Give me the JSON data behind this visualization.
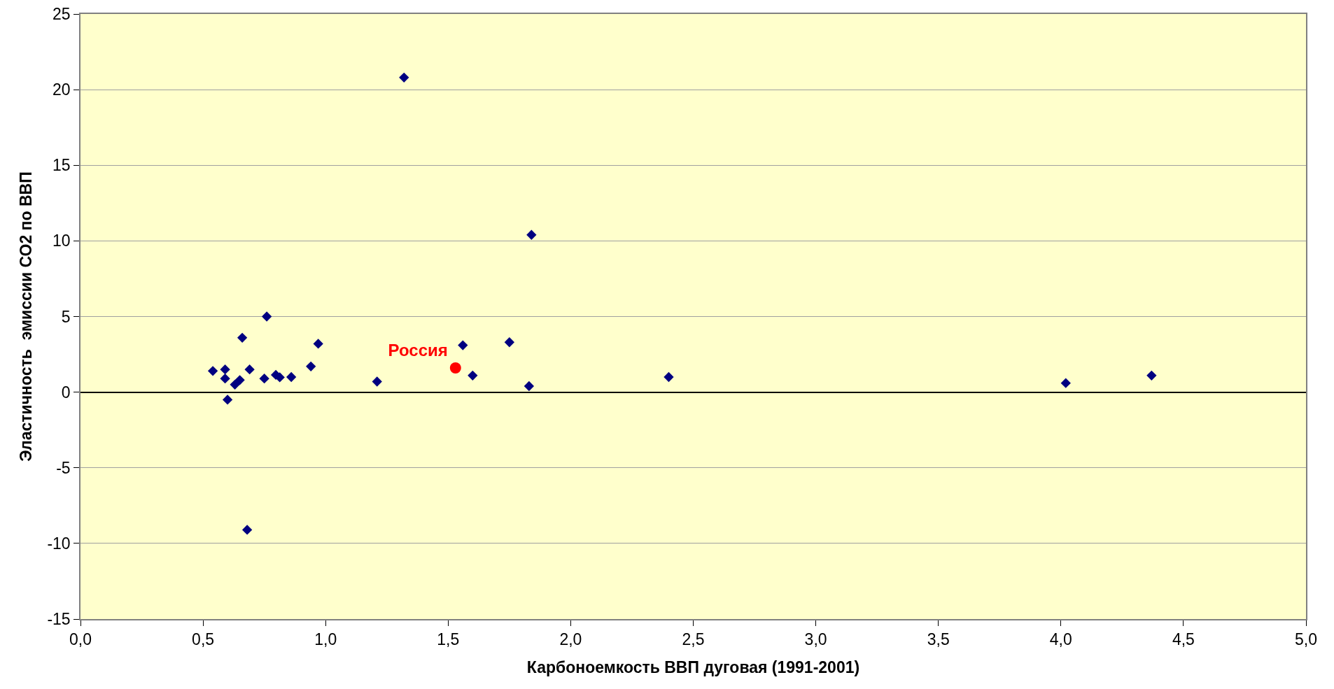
{
  "chart_data": {
    "type": "scatter",
    "xlabel": "Карбоноемкость ВВП дуговая (1991-2001)",
    "ylabel": "Эластичность  эмиссии СО2 по ВВП",
    "xlim": [
      0,
      5
    ],
    "xticks": [
      {
        "value": 0,
        "label": "0,0"
      },
      {
        "value": 0.5,
        "label": "0,5"
      },
      {
        "value": 1,
        "label": "1,0"
      },
      {
        "value": 1.5,
        "label": "1,5"
      },
      {
        "value": 2,
        "label": "2,0"
      },
      {
        "value": 2.5,
        "label": "2,5"
      },
      {
        "value": 3,
        "label": "3,0"
      },
      {
        "value": 3.5,
        "label": "3,5"
      },
      {
        "value": 4,
        "label": "4,0"
      },
      {
        "value": 4.5,
        "label": "4,5"
      },
      {
        "value": 5,
        "label": "5,0"
      }
    ],
    "ylim": [
      -15,
      25
    ],
    "yticks": [
      -15,
      -10,
      -5,
      0,
      5,
      10,
      15,
      20,
      25
    ],
    "grid": "y",
    "series": [
      {
        "color": "#000080",
        "marker": "diamond",
        "x": [
          0.54,
          0.59,
          0.59,
          0.6,
          0.66,
          0.76,
          0.69,
          0.63,
          0.65,
          0.68,
          0.75,
          0.797,
          0.813,
          0.86,
          0.94,
          0.97,
          1.21,
          1.32,
          1.56,
          1.6,
          1.75,
          1.83,
          1.84,
          2.4,
          4.02,
          4.37
        ],
        "values": [
          1.4,
          1.5,
          0.9,
          -0.5,
          3.6,
          5.0,
          1.5,
          0.5,
          0.8,
          -9.1,
          0.9,
          1.14,
          0.98,
          1.0,
          1.7,
          3.2,
          0.7,
          20.8,
          3.1,
          1.1,
          3.3,
          0.4,
          10.4,
          1.0,
          0.6,
          1.1
        ]
      },
      {
        "name": "Россия",
        "color": "#ff0000",
        "marker": "circle",
        "x": [
          1.53
        ],
        "values": [
          1.6
        ]
      }
    ]
  }
}
